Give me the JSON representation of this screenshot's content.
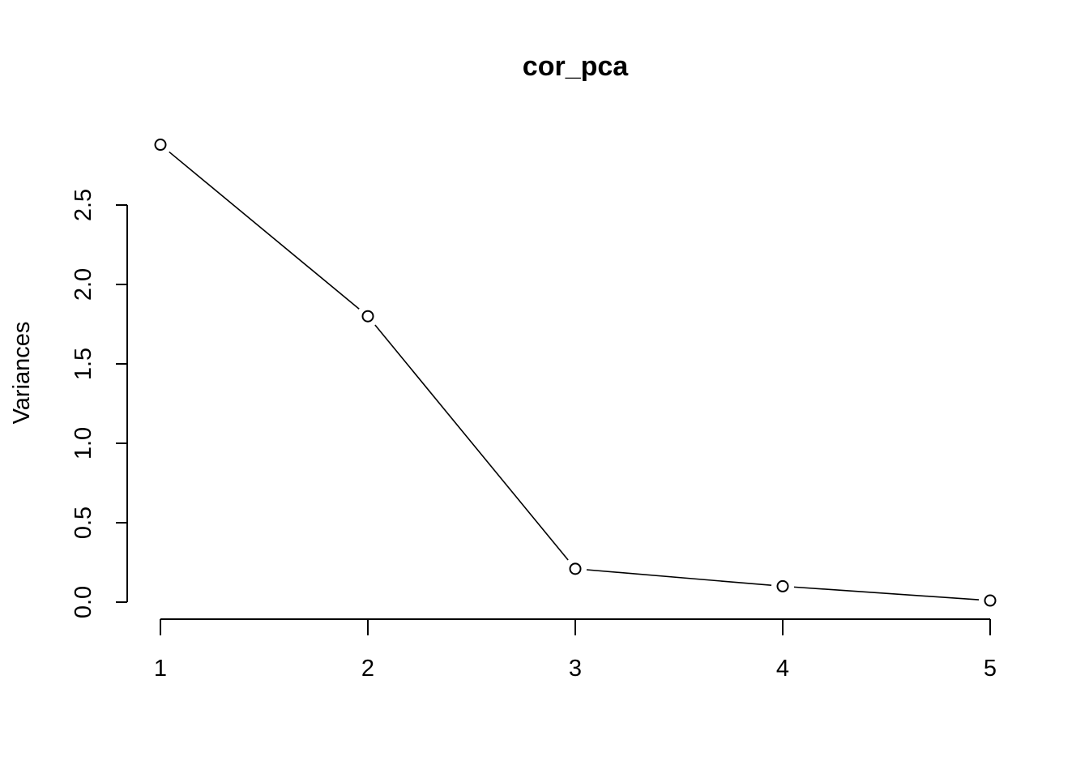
{
  "chart_data": {
    "type": "line",
    "title": "cor_pca",
    "xlabel": "",
    "ylabel": "Variances",
    "x": [
      1,
      2,
      3,
      4,
      5
    ],
    "values": [
      2.88,
      1.8,
      0.21,
      0.1,
      0.01
    ],
    "x_ticks": [
      "1",
      "2",
      "3",
      "4",
      "5"
    ],
    "y_ticks": [
      "0.0",
      "0.5",
      "1.0",
      "1.5",
      "2.0",
      "2.5"
    ],
    "xlim": [
      1,
      5
    ],
    "ylim": [
      0.0,
      2.5
    ],
    "grid": false,
    "marker": "open-circle"
  }
}
